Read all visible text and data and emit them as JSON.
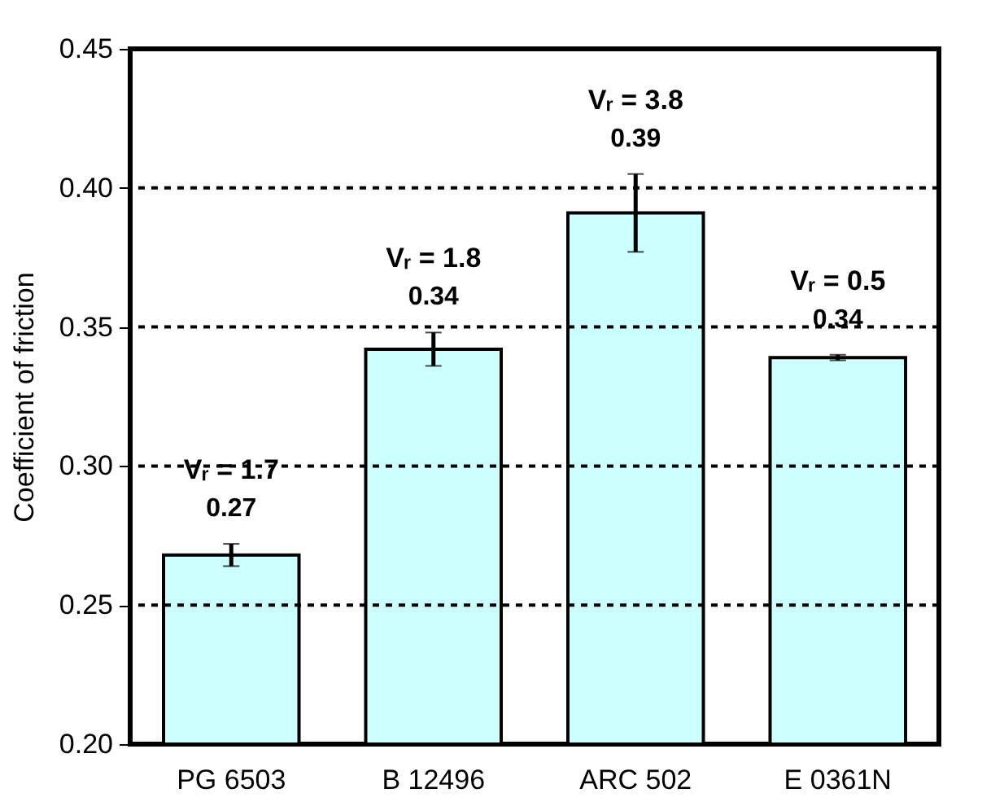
{
  "chart_data": {
    "type": "bar",
    "ylabel": "Coefficient of friction",
    "categories": [
      "PG 6503",
      "B 12496",
      "ARC 502",
      "E 0361N"
    ],
    "values": [
      0.268,
      0.342,
      0.391,
      0.339
    ],
    "errors": [
      0.004,
      0.006,
      0.014,
      0.001
    ],
    "value_labels": [
      "0.27",
      "0.34",
      "0.39",
      "0.34"
    ],
    "color": "#ccffff",
    "ylim": [
      0.2,
      0.45
    ],
    "yticks": [
      {
        "value": 0.2,
        "label": "0.20"
      },
      0.25,
      {
        "value": 0.3,
        "label": "0.30"
      },
      0.35,
      {
        "value": 0.4,
        "label": "0.40"
      },
      0.45
    ],
    "grid": "y",
    "annotations": [
      "Vᵣ = 1.7",
      "Vᵣ = 1.8",
      "Vᵣ = 3.8",
      "Vᵣ = 0.5"
    ]
  }
}
